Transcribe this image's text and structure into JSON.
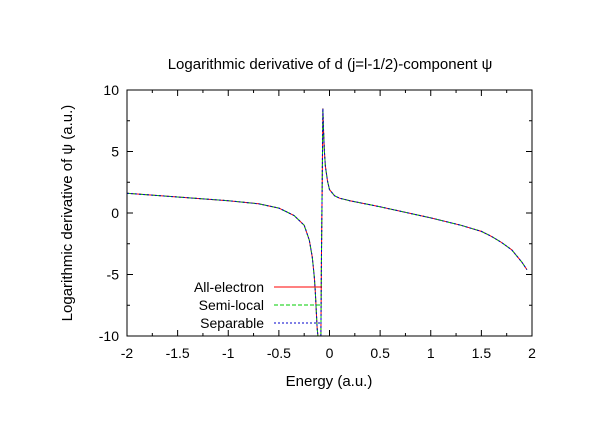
{
  "chart_data": {
    "type": "line",
    "title": "Logarithmic derivative of d (j=l-1/2)-component ψ",
    "xlabel": "Energy (a.u.)",
    "ylabel": "Logarithmic derivative of ψ (a.u.)",
    "xlim": [
      -2,
      2
    ],
    "ylim": [
      -10,
      10
    ],
    "xticks": [
      "-2",
      "-1.5",
      "-1",
      "-0.5",
      "0",
      "0.5",
      "1",
      "1.5",
      "2"
    ],
    "yticks": [
      "-10",
      "-5",
      "0",
      "5",
      "10"
    ],
    "legend_position": "bottom-left",
    "grid": false,
    "series": [
      {
        "name": "All-electron",
        "color": "#ff0000",
        "dash": "solid",
        "x": [
          -2.0,
          -1.5,
          -1.0,
          -0.7,
          -0.5,
          -0.35,
          -0.25,
          -0.2,
          -0.17,
          -0.15,
          -0.14,
          -0.13,
          -0.122,
          -0.115
        ],
        "y": [
          1.6,
          1.3,
          1.0,
          0.75,
          0.4,
          -0.2,
          -1.0,
          -2.2,
          -3.6,
          -5.2,
          -6.4,
          -8.0,
          -9.3,
          -10.0
        ]
      },
      {
        "name": "All-electron",
        "color": "#ff0000",
        "dash": "solid",
        "x": [
          -0.085,
          -0.08,
          -0.075,
          -0.07,
          -0.065,
          -0.06,
          -0.05,
          -0.04,
          -0.02,
          0.0,
          0.05,
          0.1,
          0.2,
          0.5,
          1.0,
          1.3,
          1.5,
          1.6,
          1.7,
          1.8,
          1.9,
          1.95
        ],
        "y": [
          -10.0,
          -4.0,
          0.0,
          4.0,
          8.5,
          7.0,
          5.0,
          3.8,
          2.6,
          1.9,
          1.4,
          1.2,
          1.0,
          0.5,
          -0.4,
          -1.0,
          -1.5,
          -1.9,
          -2.4,
          -3.0,
          -4.0,
          -4.6
        ]
      },
      {
        "name": "Semi-local",
        "color": "#00cc00",
        "dash": "dashed",
        "x": [
          -2.0,
          -1.5,
          -1.0,
          -0.7,
          -0.5,
          -0.35,
          -0.25,
          -0.2,
          -0.17,
          -0.15,
          -0.14,
          -0.13,
          -0.122,
          -0.115
        ],
        "y": [
          1.6,
          1.3,
          1.0,
          0.75,
          0.4,
          -0.2,
          -1.0,
          -2.2,
          -3.6,
          -5.2,
          -6.4,
          -8.0,
          -9.3,
          -10.0
        ]
      },
      {
        "name": "Semi-local",
        "color": "#00cc00",
        "dash": "dashed",
        "x": [
          -0.085,
          -0.08,
          -0.075,
          -0.07,
          -0.065,
          -0.06,
          -0.05,
          -0.04,
          -0.02,
          0.0,
          0.05,
          0.1,
          0.2,
          0.5,
          1.0,
          1.3,
          1.5,
          1.6,
          1.7,
          1.8,
          1.9,
          1.95
        ],
        "y": [
          -10.0,
          -4.0,
          0.0,
          4.0,
          8.5,
          7.0,
          5.0,
          3.8,
          2.6,
          1.9,
          1.4,
          1.2,
          1.0,
          0.5,
          -0.4,
          -1.0,
          -1.5,
          -1.9,
          -2.4,
          -3.0,
          -4.0,
          -4.6
        ]
      },
      {
        "name": "Separable",
        "color": "#0000cc",
        "dash": "dotted",
        "x": [
          -2.0,
          -1.5,
          -1.0,
          -0.7,
          -0.5,
          -0.35,
          -0.25,
          -0.2,
          -0.17,
          -0.15,
          -0.14,
          -0.13,
          -0.122,
          -0.115
        ],
        "y": [
          1.6,
          1.3,
          1.0,
          0.75,
          0.4,
          -0.2,
          -1.0,
          -2.2,
          -3.6,
          -5.2,
          -6.4,
          -8.0,
          -9.3,
          -10.0
        ]
      },
      {
        "name": "Separable",
        "color": "#0000cc",
        "dash": "dotted",
        "x": [
          -0.085,
          -0.08,
          -0.075,
          -0.07,
          -0.065,
          -0.06,
          -0.05,
          -0.04,
          -0.02,
          0.0,
          0.05,
          0.1,
          0.2,
          0.5,
          1.0,
          1.3,
          1.5,
          1.6,
          1.7,
          1.8,
          1.9,
          1.95
        ],
        "y": [
          -10.0,
          -4.0,
          0.0,
          4.0,
          8.5,
          7.0,
          5.0,
          3.8,
          2.6,
          1.9,
          1.4,
          1.2,
          1.0,
          0.5,
          -0.4,
          -1.0,
          -1.5,
          -1.9,
          -2.4,
          -3.0,
          -4.0,
          -4.6
        ]
      }
    ],
    "legend": [
      {
        "label": "All-electron",
        "color": "#ff0000",
        "dash": "solid"
      },
      {
        "label": "Semi-local",
        "color": "#00cc00",
        "dash": "dashed"
      },
      {
        "label": "Separable",
        "color": "#0000cc",
        "dash": "dotted"
      }
    ]
  }
}
